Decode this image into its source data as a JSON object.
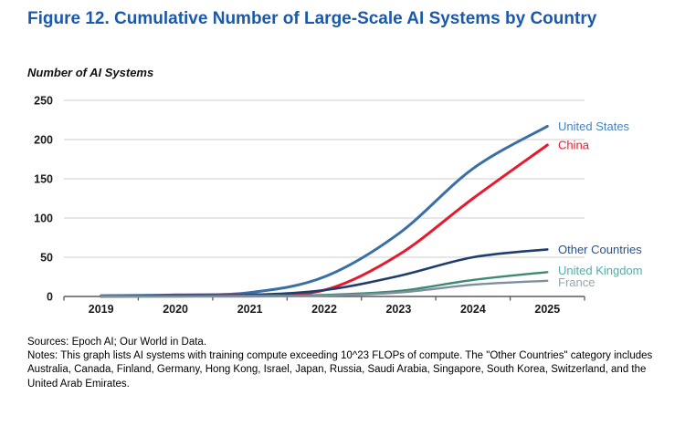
{
  "figure": {
    "title": "Figure 12. Cumulative Number of Large-Scale AI Systems by Country",
    "y_axis_title": "Number of AI Systems",
    "source_line": "Sources: Epoch AI; Our World in Data.",
    "notes_line": "Notes: This graph lists AI systems with training compute exceeding 10^23 FLOPs of compute. The \"Other Countries\" category includes Australia, Canada, Finland, Germany, Hong Kong, Israel, Japan, Russia, Saudi Arabia, Singapore, South Korea, Switzerland, and the United Arab Emirates."
  },
  "colors": {
    "title_blue": "#1a59ab",
    "grid": "#d8d8d8",
    "axis": "#595959"
  },
  "chart_data": {
    "type": "line",
    "title": "Figure 12. Cumulative Number of Large-Scale AI Systems by Country",
    "ylabel": "Number of AI Systems",
    "xlabel": "",
    "x": [
      2019,
      2020,
      2021,
      2022,
      2023,
      2024,
      2025
    ],
    "ylim": [
      0,
      250
    ],
    "yticks": [
      0,
      50,
      100,
      150,
      200,
      250
    ],
    "grid": true,
    "legend_position": "line-end-labels-right",
    "series": [
      {
        "name": "United States",
        "color": "#3a6fa5",
        "label_color": "#4584c4",
        "stroke_width": 3,
        "values": [
          1,
          2,
          5,
          25,
          80,
          163,
          217
        ]
      },
      {
        "name": "China",
        "color": "#e8192c",
        "label_color": "#e8192c",
        "stroke_width": 3,
        "values": [
          0,
          1,
          2,
          8,
          53,
          125,
          193
        ]
      },
      {
        "name": "Other Countries",
        "color": "#1f3d6e",
        "label_color": "#25538f",
        "stroke_width": 2.6,
        "values": [
          0,
          1,
          2,
          8,
          26,
          50,
          60
        ]
      },
      {
        "name": "United Kingdom",
        "color": "#3e8a70",
        "label_color": "#56aaa4",
        "stroke_width": 2.4,
        "values": [
          0,
          0,
          1,
          2,
          7,
          21,
          31
        ]
      },
      {
        "name": "France",
        "color": "#7d8fa0",
        "label_color": "#97a4b0",
        "stroke_width": 2.4,
        "values": [
          0,
          0,
          0,
          1,
          5,
          15,
          20
        ]
      }
    ]
  }
}
